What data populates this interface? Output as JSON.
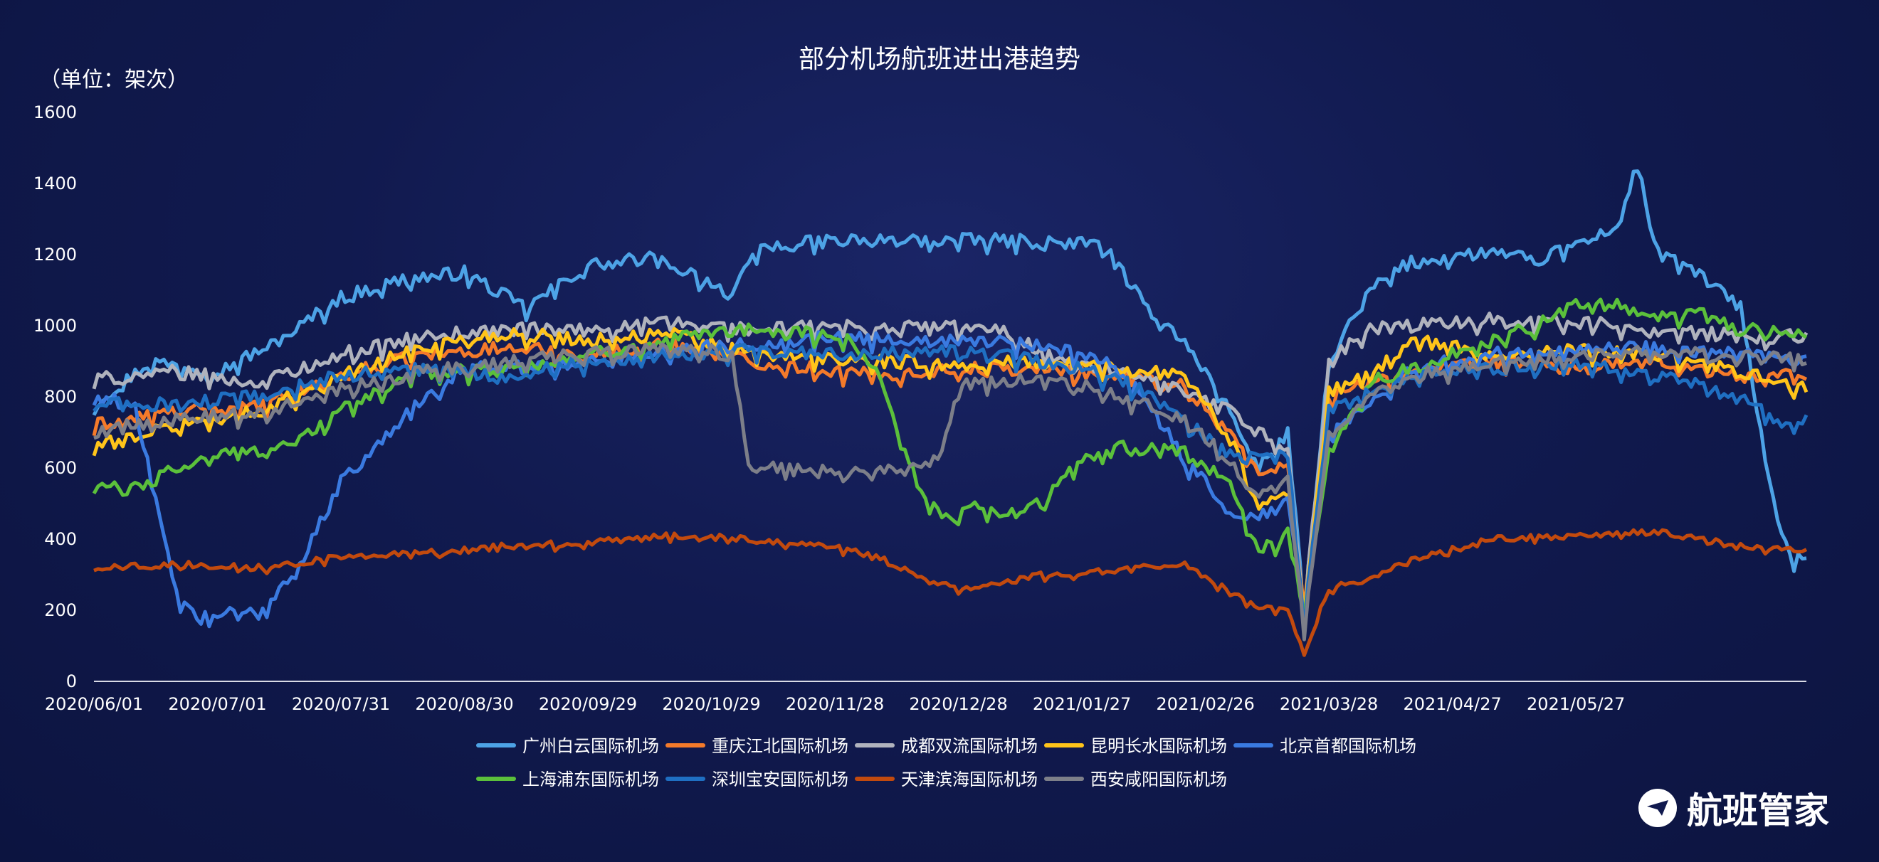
{
  "chart_data": {
    "type": "line",
    "title": "部分机场航班进出港趋势",
    "unit_label": "（单位：架次）",
    "ylim": [
      0,
      1600
    ],
    "yticks": [
      "0",
      "200",
      "400",
      "600",
      "800",
      "1000",
      "1200",
      "1400",
      "1600"
    ],
    "xticks": [
      "2020/06/01",
      "2020/07/01",
      "2020/07/31",
      "2020/08/30",
      "2020/09/29",
      "2020/10/29",
      "2020/11/28",
      "2020/12/28",
      "2021/01/27",
      "2021/02/26",
      "2021/03/28",
      "2021/04/27",
      "2021/05/27"
    ],
    "x_start": "2020/06/01",
    "x_end": "2021/06/01",
    "grid": false,
    "legend_position": "bottom",
    "series": [
      {
        "name": "广州白云国际机场",
        "color": "#4da3e6",
        "anchors": [
          [
            0,
            780
          ],
          [
            14,
            900
          ],
          [
            30,
            870
          ],
          [
            45,
            960
          ],
          [
            60,
            1080
          ],
          [
            75,
            1130
          ],
          [
            90,
            1150
          ],
          [
            105,
            1050
          ],
          [
            120,
            1170
          ],
          [
            135,
            1190
          ],
          [
            145,
            1150
          ],
          [
            155,
            1090
          ],
          [
            162,
            1220
          ],
          [
            180,
            1240
          ],
          [
            200,
            1240
          ],
          [
            220,
            1240
          ],
          [
            245,
            1230
          ],
          [
            255,
            1060
          ],
          [
            265,
            960
          ],
          [
            276,
            760
          ],
          [
            283,
            600
          ],
          [
            290,
            700
          ],
          [
            294,
            190
          ],
          [
            300,
            900
          ],
          [
            310,
            1100
          ],
          [
            320,
            1180
          ],
          [
            340,
            1210
          ],
          [
            350,
            1180
          ],
          [
            360,
            1230
          ],
          [
            370,
            1280
          ],
          [
            375,
            1450
          ],
          [
            380,
            1200
          ],
          [
            390,
            1150
          ],
          [
            400,
            1050
          ],
          [
            405,
            700
          ],
          [
            410,
            400
          ],
          [
            412,
            350
          ],
          [
            416,
            340
          ]
        ]
      },
      {
        "name": "重庆江北国际机场",
        "color": "#f47a2a",
        "anchors": [
          [
            0,
            720
          ],
          [
            20,
            760
          ],
          [
            40,
            770
          ],
          [
            60,
            860
          ],
          [
            80,
            920
          ],
          [
            100,
            940
          ],
          [
            120,
            920
          ],
          [
            140,
            950
          ],
          [
            160,
            900
          ],
          [
            175,
            880
          ],
          [
            190,
            860
          ],
          [
            210,
            880
          ],
          [
            230,
            880
          ],
          [
            250,
            860
          ],
          [
            265,
            830
          ],
          [
            276,
            700
          ],
          [
            283,
            580
          ],
          [
            290,
            620
          ],
          [
            294,
            220
          ],
          [
            300,
            800
          ],
          [
            310,
            840
          ],
          [
            320,
            870
          ],
          [
            340,
            900
          ],
          [
            360,
            880
          ],
          [
            380,
            900
          ],
          [
            400,
            860
          ],
          [
            416,
            860
          ]
        ]
      },
      {
        "name": "成都双流国际机场",
        "color": "#b0b3bd",
        "anchors": [
          [
            0,
            850
          ],
          [
            20,
            870
          ],
          [
            40,
            840
          ],
          [
            60,
            920
          ],
          [
            80,
            970
          ],
          [
            100,
            990
          ],
          [
            120,
            990
          ],
          [
            140,
            1010
          ],
          [
            160,
            990
          ],
          [
            180,
            1000
          ],
          [
            190,
            990
          ],
          [
            200,
            1000
          ],
          [
            220,
            990
          ],
          [
            235,
            900
          ],
          [
            250,
            870
          ],
          [
            265,
            810
          ],
          [
            276,
            760
          ],
          [
            283,
            700
          ],
          [
            290,
            650
          ],
          [
            294,
            190
          ],
          [
            300,
            900
          ],
          [
            310,
            990
          ],
          [
            320,
            1000
          ],
          [
            340,
            1020
          ],
          [
            360,
            1010
          ],
          [
            380,
            990
          ],
          [
            400,
            970
          ],
          [
            416,
            970
          ]
        ]
      },
      {
        "name": "昆明长水国际机场",
        "color": "#ffc41a",
        "anchors": [
          [
            0,
            660
          ],
          [
            20,
            720
          ],
          [
            40,
            760
          ],
          [
            60,
            860
          ],
          [
            80,
            940
          ],
          [
            100,
            980
          ],
          [
            120,
            960
          ],
          [
            140,
            980
          ],
          [
            160,
            920
          ],
          [
            175,
            910
          ],
          [
            190,
            900
          ],
          [
            210,
            890
          ],
          [
            230,
            900
          ],
          [
            250,
            880
          ],
          [
            265,
            870
          ],
          [
            276,
            680
          ],
          [
            283,
            500
          ],
          [
            290,
            540
          ],
          [
            294,
            200
          ],
          [
            300,
            810
          ],
          [
            310,
            860
          ],
          [
            320,
            960
          ],
          [
            340,
            920
          ],
          [
            360,
            930
          ],
          [
            380,
            920
          ],
          [
            400,
            870
          ],
          [
            416,
            820
          ]
        ]
      },
      {
        "name": "北京首都国际机场",
        "color": "#3a7ae0",
        "anchors": [
          [
            0,
            800
          ],
          [
            10,
            780
          ],
          [
            15,
            500
          ],
          [
            20,
            250
          ],
          [
            25,
            170
          ],
          [
            30,
            190
          ],
          [
            40,
            190
          ],
          [
            50,
            330
          ],
          [
            60,
            560
          ],
          [
            70,
            680
          ],
          [
            80,
            800
          ],
          [
            90,
            880
          ],
          [
            100,
            880
          ],
          [
            120,
            900
          ],
          [
            140,
            930
          ],
          [
            160,
            950
          ],
          [
            180,
            970
          ],
          [
            200,
            960
          ],
          [
            215,
            960
          ],
          [
            230,
            940
          ],
          [
            245,
            910
          ],
          [
            255,
            810
          ],
          [
            265,
            620
          ],
          [
            276,
            480
          ],
          [
            283,
            460
          ],
          [
            290,
            520
          ],
          [
            294,
            190
          ],
          [
            300,
            700
          ],
          [
            310,
            790
          ],
          [
            320,
            880
          ],
          [
            340,
            920
          ],
          [
            360,
            940
          ],
          [
            380,
            940
          ],
          [
            400,
            920
          ],
          [
            416,
            900
          ]
        ]
      },
      {
        "name": "上海浦东国际机场",
        "color": "#5bc03b",
        "anchors": [
          [
            0,
            550
          ],
          [
            10,
            540
          ],
          [
            20,
            600
          ],
          [
            30,
            640
          ],
          [
            40,
            650
          ],
          [
            50,
            680
          ],
          [
            60,
            760
          ],
          [
            70,
            820
          ],
          [
            80,
            870
          ],
          [
            100,
            880
          ],
          [
            120,
            920
          ],
          [
            140,
            960
          ],
          [
            160,
            990
          ],
          [
            175,
            980
          ],
          [
            185,
            950
          ],
          [
            190,
            880
          ],
          [
            195,
            720
          ],
          [
            200,
            560
          ],
          [
            205,
            470
          ],
          [
            210,
            460
          ],
          [
            215,
            500
          ],
          [
            220,
            470
          ],
          [
            230,
            500
          ],
          [
            240,
            620
          ],
          [
            250,
            660
          ],
          [
            265,
            640
          ],
          [
            276,
            560
          ],
          [
            283,
            360
          ],
          [
            290,
            420
          ],
          [
            294,
            200
          ],
          [
            300,
            650
          ],
          [
            310,
            840
          ],
          [
            320,
            880
          ],
          [
            340,
            960
          ],
          [
            350,
            1000
          ],
          [
            360,
            1060
          ],
          [
            370,
            1060
          ],
          [
            380,
            1030
          ],
          [
            390,
            1040
          ],
          [
            400,
            990
          ],
          [
            416,
            970
          ]
        ]
      },
      {
        "name": "深圳宝安国际机场",
        "color": "#1f6fc2",
        "anchors": [
          [
            0,
            780
          ],
          [
            20,
            780
          ],
          [
            40,
            800
          ],
          [
            60,
            860
          ],
          [
            80,
            880
          ],
          [
            100,
            860
          ],
          [
            120,
            900
          ],
          [
            140,
            920
          ],
          [
            160,
            930
          ],
          [
            180,
            920
          ],
          [
            200,
            930
          ],
          [
            220,
            920
          ],
          [
            240,
            880
          ],
          [
            255,
            820
          ],
          [
            265,
            730
          ],
          [
            276,
            640
          ],
          [
            283,
            620
          ],
          [
            290,
            640
          ],
          [
            294,
            170
          ],
          [
            300,
            760
          ],
          [
            310,
            810
          ],
          [
            320,
            860
          ],
          [
            340,
            880
          ],
          [
            360,
            900
          ],
          [
            380,
            860
          ],
          [
            400,
            800
          ],
          [
            410,
            720
          ],
          [
            416,
            730
          ]
        ]
      },
      {
        "name": "天津滨海国际机场",
        "color": "#c24a0e",
        "anchors": [
          [
            0,
            320
          ],
          [
            20,
            330
          ],
          [
            40,
            320
          ],
          [
            60,
            350
          ],
          [
            80,
            360
          ],
          [
            100,
            380
          ],
          [
            120,
            390
          ],
          [
            140,
            410
          ],
          [
            160,
            400
          ],
          [
            170,
            390
          ],
          [
            180,
            380
          ],
          [
            190,
            350
          ],
          [
            200,
            300
          ],
          [
            210,
            260
          ],
          [
            220,
            280
          ],
          [
            230,
            300
          ],
          [
            245,
            310
          ],
          [
            265,
            330
          ],
          [
            276,
            250
          ],
          [
            283,
            210
          ],
          [
            290,
            200
          ],
          [
            294,
            80
          ],
          [
            300,
            260
          ],
          [
            310,
            290
          ],
          [
            320,
            340
          ],
          [
            340,
            400
          ],
          [
            360,
            410
          ],
          [
            380,
            420
          ],
          [
            400,
            380
          ],
          [
            416,
            370
          ]
        ]
      },
      {
        "name": "西安咸阳国际机场",
        "color": "#7d7f89",
        "anchors": [
          [
            0,
            700
          ],
          [
            20,
            740
          ],
          [
            40,
            750
          ],
          [
            60,
            820
          ],
          [
            80,
            870
          ],
          [
            100,
            900
          ],
          [
            120,
            920
          ],
          [
            140,
            940
          ],
          [
            155,
            920
          ],
          [
            159,
            600
          ],
          [
            180,
            590
          ],
          [
            200,
            600
          ],
          [
            205,
            620
          ],
          [
            210,
            830
          ],
          [
            230,
            850
          ],
          [
            240,
            830
          ],
          [
            250,
            800
          ],
          [
            265,
            740
          ],
          [
            276,
            620
          ],
          [
            283,
            520
          ],
          [
            290,
            560
          ],
          [
            294,
            150
          ],
          [
            300,
            700
          ],
          [
            310,
            800
          ],
          [
            320,
            860
          ],
          [
            340,
            900
          ],
          [
            360,
            920
          ],
          [
            380,
            930
          ],
          [
            400,
            910
          ],
          [
            416,
            910
          ]
        ]
      }
    ]
  }
}
